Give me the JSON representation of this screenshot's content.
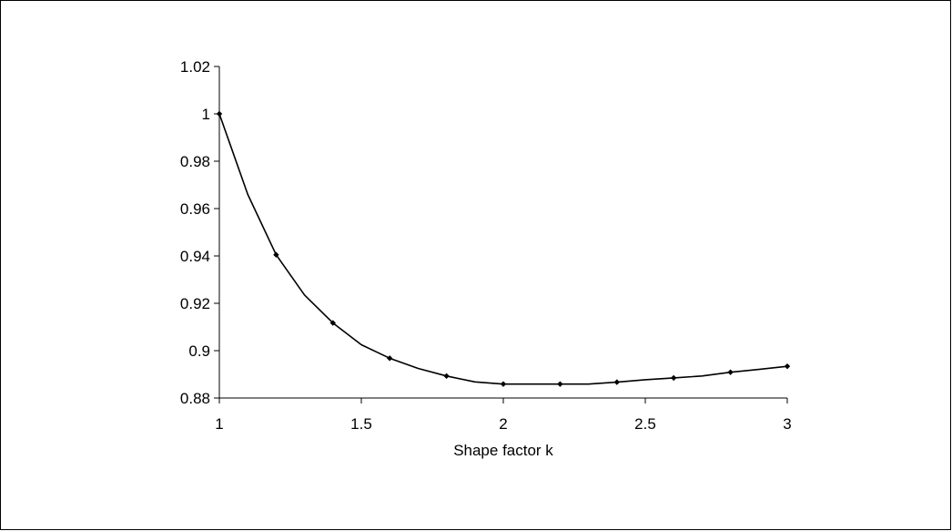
{
  "chart_data": {
    "type": "line",
    "title": "",
    "xlabel": "Shape factor k",
    "ylabel": "",
    "xlim": [
      1,
      3
    ],
    "ylim": [
      0.88,
      1.02
    ],
    "x_ticks": [
      1,
      1.5,
      2,
      2.5,
      3
    ],
    "x_tick_labels": [
      "1",
      "1.5",
      "2",
      "2.5",
      "3"
    ],
    "y_ticks": [
      0.88,
      0.9,
      0.92,
      0.94,
      0.96,
      0.98,
      1.0,
      1.02
    ],
    "y_tick_labels": [
      "0.88",
      "0.9",
      "0.92",
      "0.94",
      "0.96",
      "0.98",
      "1",
      "1.02"
    ],
    "grid": false,
    "legend": "none",
    "series": [
      {
        "line_color": "#000000",
        "x": [
          1,
          1.1,
          1.2,
          1.3,
          1.4,
          1.5,
          1.6,
          1.7,
          1.8,
          1.9,
          2.0,
          2.1,
          2.2,
          2.3,
          2.4,
          2.5,
          2.6,
          2.7,
          2.8,
          2.9,
          3.0
        ],
        "y": [
          1.0,
          0.966,
          0.9405,
          0.9235,
          0.9117,
          0.9025,
          0.8968,
          0.8925,
          0.8893,
          0.8868,
          0.8859,
          0.8859,
          0.8859,
          0.8859,
          0.8867,
          0.8877,
          0.8885,
          0.8893,
          0.8909,
          0.8921,
          0.8934
        ],
        "marker_x": [
          1,
          1.2,
          1.4,
          1.6,
          1.8,
          2.0,
          2.2,
          2.4,
          2.6,
          2.8,
          3.0
        ],
        "marker_y": [
          1.0,
          0.9405,
          0.9117,
          0.8968,
          0.8893,
          0.8859,
          0.8859,
          0.8867,
          0.8885,
          0.8909,
          0.8934
        ]
      }
    ]
  }
}
